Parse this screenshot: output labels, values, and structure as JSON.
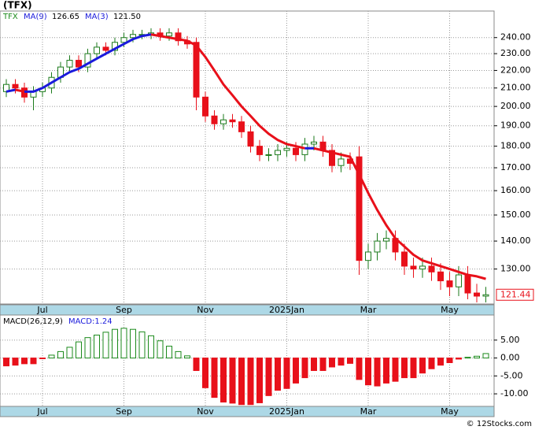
{
  "header": {
    "title": "(TFX)",
    "footer": "© 12Stocks.com"
  },
  "chart_data": [
    {
      "type": "candlestick",
      "symbol": "TFX",
      "indicators": [
        {
          "name": "MA(9)",
          "value_label": "126.65"
        },
        {
          "name": "MA(3)",
          "value_label": "121.50"
        }
      ],
      "categories": [
        null,
        null,
        null,
        null,
        "Jul",
        null,
        null,
        null,
        null,
        null,
        null,
        null,
        null,
        "Sep",
        null,
        null,
        null,
        null,
        null,
        null,
        null,
        null,
        "Nov",
        null,
        null,
        null,
        null,
        null,
        null,
        null,
        null,
        "2025Jan",
        null,
        null,
        null,
        null,
        null,
        null,
        null,
        null,
        "Mar",
        null,
        null,
        null,
        null,
        null,
        null,
        null,
        null,
        "May",
        null,
        null,
        null,
        null
      ],
      "open": [
        208,
        212,
        210,
        205,
        208,
        210,
        216,
        222,
        226,
        222,
        230,
        234,
        232,
        237,
        240,
        242,
        242,
        243,
        241,
        243,
        238,
        237,
        205,
        195,
        191,
        193,
        192,
        187,
        180,
        176,
        176,
        178,
        179,
        176,
        181,
        182,
        178,
        171,
        174,
        175,
        133,
        136,
        140,
        141,
        136,
        131,
        130,
        131,
        129,
        126,
        124,
        128,
        122,
        121
      ],
      "high": [
        215,
        215,
        213,
        211,
        213,
        219,
        225,
        229,
        229,
        233,
        237,
        237,
        240,
        243,
        245,
        245,
        246,
        246,
        246,
        246,
        241,
        240,
        208,
        198,
        196,
        196,
        195,
        190,
        183,
        179,
        181,
        182,
        182,
        184,
        185,
        185,
        181,
        177,
        177,
        180,
        139,
        143,
        144,
        144,
        139,
        134,
        134,
        134,
        132,
        129,
        131,
        131,
        125,
        124
      ],
      "low": [
        205,
        207,
        202,
        198,
        205,
        207,
        213,
        219,
        219,
        219,
        227,
        229,
        229,
        234,
        237,
        239,
        239,
        238,
        238,
        235,
        233,
        198,
        192,
        188,
        188,
        189,
        184,
        177,
        173,
        173,
        173,
        175,
        173,
        173,
        178,
        175,
        168,
        168,
        169,
        128,
        130,
        133,
        137,
        133,
        128,
        127,
        127,
        126,
        123,
        121,
        121,
        120,
        119,
        119
      ],
      "close": [
        212,
        210,
        205,
        208,
        210,
        216,
        222,
        226,
        222,
        230,
        234,
        232,
        237,
        240,
        242,
        242,
        243,
        241,
        243,
        238,
        236,
        205,
        195,
        191,
        193,
        192,
        187,
        180,
        176,
        176,
        178,
        179,
        176,
        181,
        182,
        178,
        171,
        174,
        172,
        133,
        136,
        140,
        141,
        136,
        131,
        130,
        131,
        129,
        126,
        124,
        128,
        122,
        121,
        121.44
      ],
      "up_color": "#1b7a1b",
      "down_color": "#e8101a",
      "series": [
        {
          "name": "MA(9)",
          "values": [
            208,
            209,
            208,
            208,
            210,
            213,
            216,
            219,
            221,
            224,
            227,
            230,
            233,
            236,
            239,
            241,
            242,
            241,
            240,
            239,
            238,
            235,
            228,
            220,
            212,
            206,
            200,
            195,
            190,
            186,
            183,
            181,
            180,
            179,
            179,
            178,
            177,
            176,
            175,
            167,
            159,
            152,
            146,
            141,
            138,
            135,
            133,
            132,
            131,
            130,
            129,
            128,
            127.5,
            126.65
          ]
        }
      ],
      "rising_color": "#1a1adc",
      "falling_color": "#e8101a",
      "last_label": "121.44",
      "log_scale": true,
      "grid": true,
      "ylim": [
        118.5,
        257.5
      ],
      "yticks": [
        {
          "value": 130,
          "label": "130.00"
        },
        {
          "value": 140,
          "label": "140.00"
        },
        {
          "value": 150,
          "label": "150.00"
        },
        {
          "value": 160,
          "label": "160.00"
        },
        {
          "value": 170,
          "label": "170.00"
        },
        {
          "value": 180,
          "label": "180.00"
        },
        {
          "value": 190,
          "label": "190.00"
        },
        {
          "value": 200,
          "label": "200.00"
        },
        {
          "value": 210,
          "label": "210.00"
        },
        {
          "value": 220,
          "label": "220.00"
        },
        {
          "value": 230,
          "label": "230.00"
        },
        {
          "value": 240,
          "label": "240.00"
        }
      ]
    },
    {
      "type": "macd",
      "title": "MACD(26,12,9)",
      "value_label": "MACD:1.24",
      "categories": [
        null,
        null,
        null,
        null,
        "Jul",
        null,
        null,
        null,
        null,
        null,
        null,
        null,
        null,
        "Sep",
        null,
        null,
        null,
        null,
        null,
        null,
        null,
        null,
        "Nov",
        null,
        null,
        null,
        null,
        null,
        null,
        null,
        null,
        "2025Jan",
        null,
        null,
        null,
        null,
        null,
        null,
        null,
        null,
        "Mar",
        null,
        null,
        null,
        null,
        null,
        null,
        null,
        null,
        "May",
        null,
        null,
        null,
        null
      ],
      "values": [
        -2.2,
        -2,
        -1.6,
        -1.6,
        -0.2,
        0.8,
        1.8,
        3,
        4.5,
        5.7,
        6.4,
        7.2,
        8,
        8.3,
        8,
        7.3,
        6.2,
        4.8,
        3.3,
        1.8,
        0.6,
        -3.5,
        -8.3,
        -11,
        -12.3,
        -12.6,
        -13,
        -13,
        -12.5,
        -10.5,
        -9,
        -8.5,
        -7,
        -5.5,
        -3.5,
        -3.5,
        -2.5,
        -2,
        -1.5,
        -6,
        -7.5,
        -7.8,
        -7,
        -6.5,
        -5.5,
        -5.5,
        -4.2,
        -3,
        -2,
        -1.3,
        -0.3,
        0.2,
        0.5,
        1.24
      ],
      "positive_color": "#1b8a1b",
      "negative_color": "#e8101a",
      "grid": true,
      "ylim": [
        -13.5,
        12
      ],
      "yticks": [
        {
          "value": -10,
          "label": "-10.00"
        },
        {
          "value": -5,
          "label": "-5.00"
        },
        {
          "value": 0,
          "label": "0.00"
        },
        {
          "value": 5,
          "label": "5.00"
        }
      ]
    }
  ]
}
